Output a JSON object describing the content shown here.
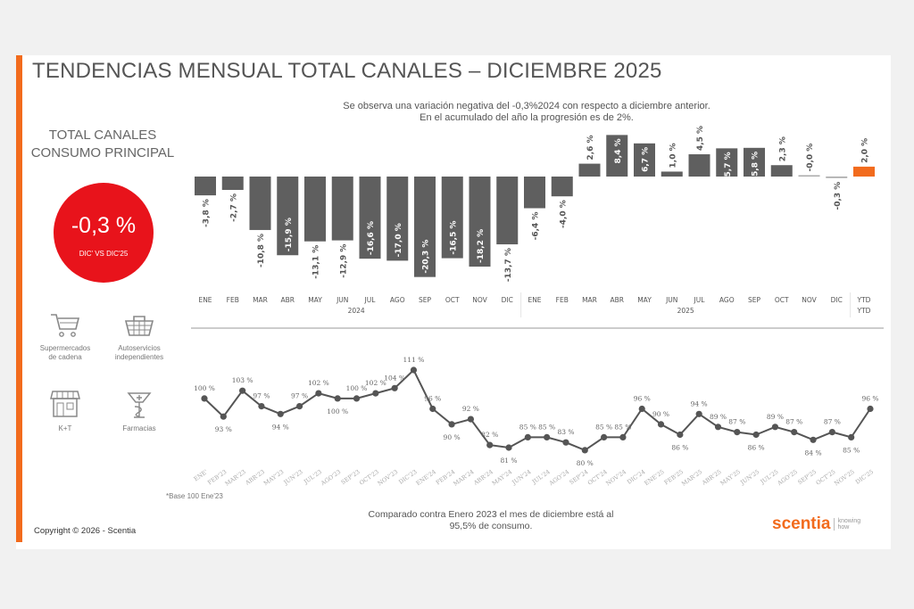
{
  "title": "TENDENCIAS MENSUAL TOTAL CANALES – DICIEMBRE 2025",
  "top_note": [
    "Se observa una variación negativa del -0,3%2024 con respecto a diciembre anterior.",
    "En el acumulado del año la progresión es de 2%."
  ],
  "left_panel": {
    "heading": [
      "TOTAL CANALES",
      "CONSUMO PRINCIPAL"
    ],
    "kpi_value": "-0,3 %",
    "kpi_caption": "DIC' VS DIC'25",
    "kpi_color": "#e8131b",
    "channels": [
      {
        "label": [
          "Supermercados",
          "de cadena"
        ],
        "icon": "shopping-cart-icon"
      },
      {
        "label": [
          "Autoservicios",
          "independientes"
        ],
        "icon": "basket-icon"
      },
      {
        "label": [
          "K+T"
        ],
        "icon": "store-icon"
      },
      {
        "label": [
          "Farmacias"
        ],
        "icon": "pharmacy-icon"
      }
    ]
  },
  "chart_data": [
    {
      "type": "bar",
      "categories": [
        "ENE",
        "FEB",
        "MAR",
        "ABR",
        "MAY",
        "JUN",
        "JUL",
        "AGO",
        "SEP",
        "OCT",
        "NOV",
        "DIC",
        "ENE",
        "FEB",
        "MAR",
        "ABR",
        "MAY",
        "JUN",
        "JUL",
        "AGO",
        "SEP",
        "OCT",
        "NOV",
        "DIC",
        "YTD"
      ],
      "groups": [
        {
          "label": "2024",
          "from": 0,
          "to": 11
        },
        {
          "label": "2025",
          "from": 12,
          "to": 23
        },
        {
          "label": "YTD",
          "from": 24,
          "to": 24
        }
      ],
      "values": [
        -3.8,
        -2.7,
        -10.8,
        -15.9,
        -13.1,
        -12.9,
        -16.6,
        -17.0,
        -20.3,
        -16.5,
        -18.2,
        -13.7,
        -6.4,
        -4.0,
        2.6,
        8.4,
        6.7,
        1.0,
        4.5,
        5.7,
        5.8,
        2.3,
        -0.0,
        -0.3,
        2.0
      ],
      "data_labels": [
        "-3,8 %",
        "-2,7 %",
        "-10,8 %",
        "-15,9 %",
        "-13,1 %",
        "-12,9 %",
        "-16,6 %",
        "-17,0 %",
        "-20,3 %",
        "-16,5 %",
        "-18,2 %",
        "-13,7 %",
        "-6,4 %",
        "-4,0 %",
        "2,6 %",
        "8,4 %",
        "6,7 %",
        "1,0 %",
        "4,5 %",
        "5,7 %",
        "5,8 %",
        "2,3 %",
        "-0,0 %",
        "-0,3 %",
        "2,0 %"
      ],
      "colors": {
        "bar": "#5f5f5f",
        "highlight": "#f26b1d"
      },
      "highlight_index": 24,
      "ylim": [
        -21,
        9
      ]
    },
    {
      "type": "line",
      "x": [
        "ENE'",
        "FEB'23",
        "MAR'23",
        "ABR'23",
        "MAY'23",
        "JUN'23",
        "JUL'23",
        "AGO'23",
        "SEP'23",
        "OCT'23",
        "NOV'23",
        "DIC'23",
        "ENE'24",
        "FEB'24",
        "MAR'24",
        "ABR'24",
        "MAY'24",
        "JUN'24",
        "JUL'24",
        "AGO'24",
        "SEP'24",
        "OCT'24",
        "NOV'24",
        "DIC'24",
        "ENE'25",
        "FEB'25",
        "MAR'25",
        "ABR'25",
        "MAY'25",
        "JUN'25",
        "JUL'25",
        "AGO'25",
        "SEP'25",
        "OCT'25",
        "NOV'25",
        "DIC'25"
      ],
      "values": [
        100,
        93,
        103,
        97,
        94,
        97,
        102,
        100,
        100,
        102,
        104,
        111,
        96,
        90,
        92,
        82,
        81,
        85,
        85,
        83,
        80,
        85,
        85,
        96,
        90,
        86,
        94,
        89,
        87,
        86,
        89,
        87,
        84,
        87,
        85,
        96
      ],
      "unit": "%",
      "color": "#555555",
      "ylim": [
        78,
        113
      ],
      "footnote": "*Base 100 Ene'23"
    }
  ],
  "bottom_note": [
    "Comparado contra Enero 2023 el mes de diciembre está al",
    "95,5% de consumo."
  ],
  "copyright": "Copyright © 2026 - Scentia",
  "logo": {
    "name": "scentia",
    "tagline": [
      "knowing",
      "how"
    ]
  }
}
